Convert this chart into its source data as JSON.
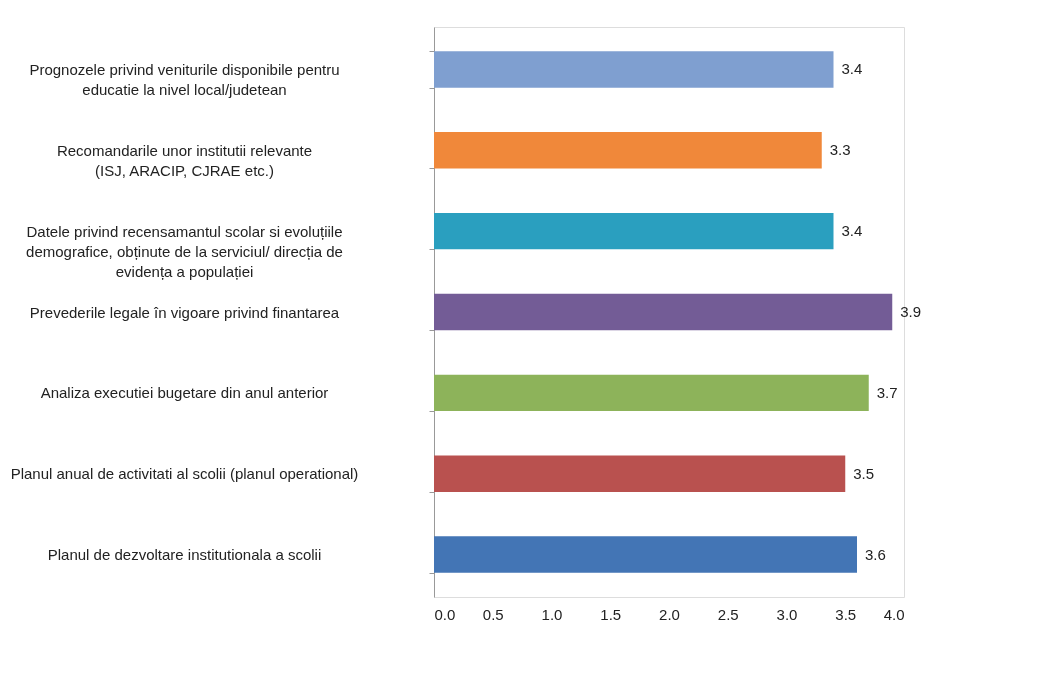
{
  "chart_data": {
    "type": "bar",
    "orientation": "horizontal",
    "categories": [
      "Prognozele privind veniturile disponibile pentru\neducatie la nivel local/judetean",
      "Recomandarile unor institutii relevante\n(ISJ, ARACIP, CJRAE etc.)",
      "Datele privind recensamantul scolar si evoluțiile\ndemografice, obținute de la serviciul/ direcția de\nevidența a populației",
      "Prevederile legale în vigoare privind finantarea",
      "Analiza executiei bugetare din anul anterior",
      "Planul anual de activitati al scolii (planul operational)",
      "Planul de dezvoltare institutionala a scolii"
    ],
    "values": [
      3.4,
      3.3,
      3.4,
      3.9,
      3.7,
      3.5,
      3.6
    ],
    "colors": [
      "#7f9fd0",
      "#f0883a",
      "#2a9fbf",
      "#735c96",
      "#8db35a",
      "#b9514f",
      "#4375b5"
    ],
    "xlim": [
      0,
      4
    ],
    "xticks": [
      {
        "value": 0,
        "label": "0.0"
      },
      {
        "value": 0.5,
        "label": "0.5"
      },
      {
        "value": 1,
        "label": "1.0"
      },
      {
        "value": 1.5,
        "label": "1.5"
      },
      {
        "value": 2,
        "label": "2.0"
      },
      {
        "value": 2.5,
        "label": "2.5"
      },
      {
        "value": 3,
        "label": "3.0"
      },
      {
        "value": 3.5,
        "label": "3.5"
      },
      {
        "value": 4,
        "label": "4.0"
      }
    ],
    "data_labels": true,
    "grid": false
  }
}
